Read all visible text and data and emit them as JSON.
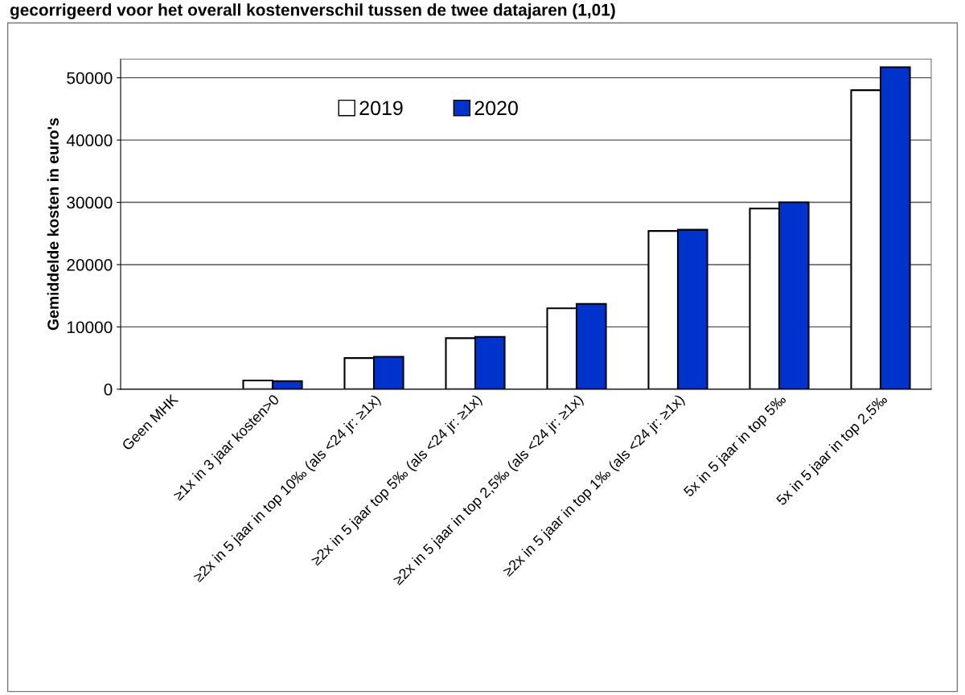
{
  "chart_data": {
    "type": "bar",
    "title": "gecorrigeerd voor het overall kostenverschil tussen de twee datajaren (1,01)",
    "ylabel": "Gemiddelde kosten in euro's",
    "categories": [
      "Geen MHK",
      "≥1x in 3 jaar kosten>0",
      "≥2x in 5 jaar in top 10‰ (als <24 jr: ≥1x)",
      "≥2x in 5 jaar top 5‰ (als <24 jr: ≥1x)",
      "≥2x in 5 jaar in top 2,5‰ (als <24 jr: ≥1x)",
      "≥2x in 5 jaar in top 1‰ (als <24 jr: ≥1x)",
      "5x in 5 jaar in top 5‰",
      "5x in 5 jaar in top 2,5‰"
    ],
    "series": [
      {
        "name": "2019",
        "color": "#ffffff",
        "values": [
          null,
          1400,
          5000,
          8200,
          13000,
          25400,
          29000,
          48000
        ]
      },
      {
        "name": "2020",
        "color": "#0033cc",
        "values": [
          null,
          1300,
          5200,
          8400,
          13700,
          25600,
          30000,
          51700
        ]
      }
    ],
    "ylim": [
      0,
      53000
    ],
    "yticks": [
      0,
      10000,
      20000,
      30000,
      40000,
      50000
    ],
    "grid": "y",
    "legend": "top"
  }
}
